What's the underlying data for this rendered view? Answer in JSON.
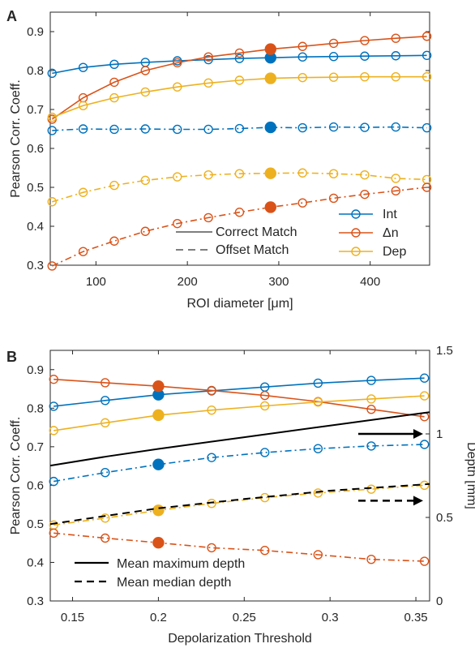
{
  "colors": {
    "int": "#0072BD",
    "dn": "#D95319",
    "dep": "#EDB120",
    "black": "#000000",
    "axis": "#262626"
  },
  "chart_data": [
    {
      "panel": "A",
      "type": "line",
      "xlabel": "ROI diameter [μm]",
      "ylabel": "Pearson Corr. Coeff.",
      "xlim": [
        50,
        465
      ],
      "ylim": [
        0.3,
        0.95
      ],
      "xticks": [
        100,
        200,
        300,
        400
      ],
      "yticks": [
        0.3,
        0.4,
        0.5,
        0.6,
        0.7,
        0.8,
        0.9
      ],
      "grid": false,
      "legend_placement": "bottom-right",
      "highlight_x": 291,
      "x": [
        52,
        86,
        120,
        154,
        189,
        223,
        257,
        291,
        326,
        360,
        394,
        428,
        462
      ],
      "series": [
        {
          "name": "Int",
          "color_key": "int",
          "style": "solid",
          "legend": true,
          "values": [
            0.793,
            0.808,
            0.816,
            0.821,
            0.825,
            0.828,
            0.831,
            0.833,
            0.835,
            0.836,
            0.837,
            0.838,
            0.839
          ]
        },
        {
          "name": "Δn",
          "color_key": "dn",
          "style": "solid",
          "legend": true,
          "values": [
            0.675,
            0.73,
            0.77,
            0.8,
            0.82,
            0.835,
            0.845,
            0.855,
            0.862,
            0.87,
            0.877,
            0.883,
            0.888
          ]
        },
        {
          "name": "Dep",
          "color_key": "dep",
          "style": "solid",
          "legend": true,
          "values": [
            0.68,
            0.71,
            0.73,
            0.745,
            0.758,
            0.768,
            0.775,
            0.78,
            0.782,
            0.783,
            0.784,
            0.784,
            0.784
          ]
        },
        {
          "name": "",
          "color_key": "int",
          "style": "dashdot",
          "legend": false,
          "values": [
            0.646,
            0.65,
            0.649,
            0.65,
            0.649,
            0.649,
            0.651,
            0.654,
            0.653,
            0.655,
            0.654,
            0.655,
            0.653
          ]
        },
        {
          "name": "",
          "color_key": "dep",
          "style": "dashdot",
          "legend": false,
          "values": [
            0.463,
            0.487,
            0.505,
            0.518,
            0.527,
            0.532,
            0.535,
            0.536,
            0.537,
            0.535,
            0.532,
            0.523,
            0.52
          ]
        },
        {
          "name": "",
          "color_key": "dn",
          "style": "dashdot",
          "legend": false,
          "values": [
            0.298,
            0.335,
            0.362,
            0.387,
            0.407,
            0.422,
            0.436,
            0.449,
            0.46,
            0.472,
            0.482,
            0.491,
            0.5
          ]
        }
      ],
      "style_legend": [
        {
          "label": "Correct Match",
          "style": "solid"
        },
        {
          "label": "Offset Match",
          "style": "dashed"
        }
      ]
    },
    {
      "panel": "B",
      "type": "line",
      "xlabel": "Depolarization Threshold",
      "ylabel": "Pearson Corr. Coeff.",
      "ylabel_right": "Depth [mm]",
      "xlim": [
        0.137,
        0.358
      ],
      "ylim": [
        0.3,
        0.95
      ],
      "ylim_right": [
        0,
        1.5
      ],
      "xticks": [
        0.15,
        0.2,
        0.25,
        0.3,
        0.35
      ],
      "yticks": [
        0.3,
        0.4,
        0.5,
        0.6,
        0.7,
        0.8,
        0.9
      ],
      "yticks_right": [
        0,
        0.5,
        1,
        1.5
      ],
      "grid": false,
      "legend_placement": "bottom-left",
      "highlight_x": 0.2,
      "x": [
        0.139,
        0.169,
        0.2,
        0.231,
        0.262,
        0.293,
        0.324,
        0.355
      ],
      "series": [
        {
          "name": "",
          "color_key": "int",
          "style": "solid",
          "values": [
            0.805,
            0.82,
            0.835,
            0.845,
            0.855,
            0.865,
            0.872,
            0.878
          ]
        },
        {
          "name": "",
          "color_key": "dn",
          "style": "solid",
          "values": [
            0.875,
            0.866,
            0.857,
            0.846,
            0.833,
            0.817,
            0.797,
            0.778
          ]
        },
        {
          "name": "",
          "color_key": "dep",
          "style": "solid",
          "values": [
            0.742,
            0.762,
            0.782,
            0.795,
            0.806,
            0.816,
            0.824,
            0.832
          ]
        },
        {
          "name": "",
          "color_key": "int",
          "style": "dashdot",
          "values": [
            0.61,
            0.633,
            0.654,
            0.672,
            0.685,
            0.695,
            0.702,
            0.706
          ]
        },
        {
          "name": "",
          "color_key": "dep",
          "style": "dashdot",
          "values": [
            0.497,
            0.515,
            0.535,
            0.553,
            0.568,
            0.58,
            0.59,
            0.6
          ]
        },
        {
          "name": "",
          "color_key": "dn",
          "style": "dashdot",
          "values": [
            0.476,
            0.463,
            0.451,
            0.438,
            0.431,
            0.42,
            0.408,
            0.403
          ]
        }
      ],
      "depth_series": [
        {
          "name": "Mean maximum depth",
          "style": "solid",
          "x": [
            0.137,
            0.17,
            0.2,
            0.25,
            0.3,
            0.358
          ],
          "values": [
            0.81,
            0.865,
            0.91,
            0.98,
            1.05,
            1.13
          ]
        },
        {
          "name": "Mean median depth",
          "style": "dashed",
          "x": [
            0.137,
            0.17,
            0.2,
            0.25,
            0.3,
            0.358
          ],
          "values": [
            0.46,
            0.51,
            0.555,
            0.61,
            0.66,
            0.7
          ]
        }
      ]
    }
  ]
}
